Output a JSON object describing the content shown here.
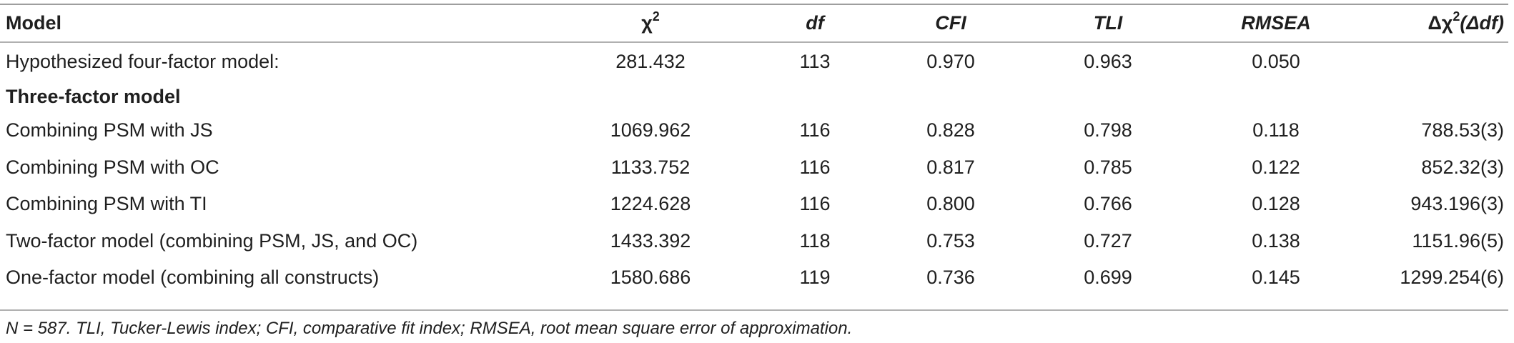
{
  "header": {
    "model": "Model",
    "chi2": "χ",
    "chi2_sup": "2",
    "df": "df",
    "cfi": "CFI",
    "tli": "TLI",
    "rmsea": "RMSEA",
    "delta_pre": "Δχ",
    "delta_sup": "2",
    "delta_post": "(Δdf)"
  },
  "rows": [
    {
      "model": "Hypothesized four-factor model:",
      "chi2": "281.432",
      "df": "113",
      "cfi": "0.970",
      "tli": "0.963",
      "rmsea": "0.050",
      "delta": ""
    },
    {
      "model": "Combining PSM with JS",
      "chi2": "1069.962",
      "df": "116",
      "cfi": "0.828",
      "tli": "0.798",
      "rmsea": "0.118",
      "delta": "788.53(3)"
    },
    {
      "model": "Combining PSM with OC",
      "chi2": "1133.752",
      "df": "116",
      "cfi": "0.817",
      "tli": "0.785",
      "rmsea": "0.122",
      "delta": "852.32(3)"
    },
    {
      "model": "Combining PSM with TI",
      "chi2": "1224.628",
      "df": "116",
      "cfi": "0.800",
      "tli": "0.766",
      "rmsea": "0.128",
      "delta": "943.196(3)"
    },
    {
      "model": "Two-factor model (combining PSM, JS, and OC)",
      "chi2": "1433.392",
      "df": "118",
      "cfi": "0.753",
      "tli": "0.727",
      "rmsea": "0.138",
      "delta": "1151.96(5)"
    },
    {
      "model": "One-factor model (combining all constructs)",
      "chi2": "1580.686",
      "df": "119",
      "cfi": "0.736",
      "tli": "0.699",
      "rmsea": "0.145",
      "delta": "1299.254(6)"
    }
  ],
  "section": {
    "three_factor": "Three-factor model"
  },
  "footnote": "N = 587. TLI, Tucker-Lewis index; CFI, comparative fit index; RMSEA, root mean square error of approximation."
}
